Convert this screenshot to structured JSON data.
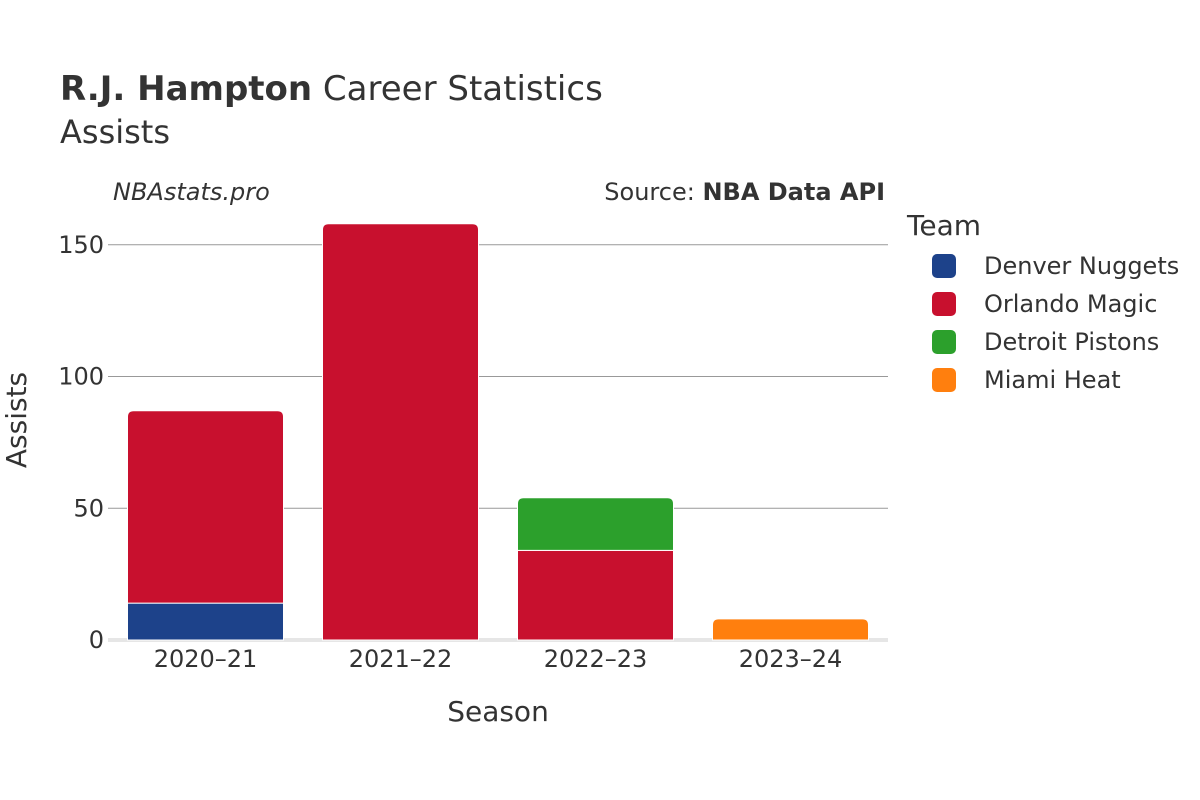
{
  "title": {
    "player": "R.J. Hampton",
    "rest": " Career Statistics",
    "subtitle": "Assists"
  },
  "watermark": "NBAstats.pro",
  "source": {
    "prefix": "Source: ",
    "name": "NBA Data API"
  },
  "legend": {
    "title": "Team"
  },
  "colors": {
    "Denver Nuggets": "#1d428a",
    "Orlando Magic": "#c8102e",
    "Detroit Pistons": "#2ca02c",
    "Miami Heat": "#ff7f0e"
  },
  "chart_data": {
    "type": "bar",
    "stacked": true,
    "categories": [
      "2020–21",
      "2021–22",
      "2022–23",
      "2023–24"
    ],
    "series": [
      {
        "name": "Denver Nuggets",
        "values": [
          14,
          0,
          0,
          0
        ]
      },
      {
        "name": "Orlando Magic",
        "values": [
          73,
          158,
          34,
          0
        ]
      },
      {
        "name": "Detroit Pistons",
        "values": [
          0,
          0,
          20,
          0
        ]
      },
      {
        "name": "Miami Heat",
        "values": [
          0,
          0,
          0,
          8
        ]
      }
    ],
    "xlabel": "Season",
    "ylabel": "Assists",
    "ylim": [
      0,
      167
    ],
    "yticks": [
      0,
      50,
      100,
      150
    ],
    "grid": true,
    "legend_position": "right"
  }
}
